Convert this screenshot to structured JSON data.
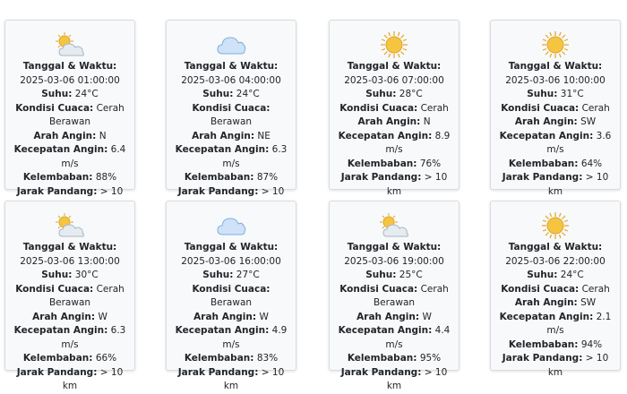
{
  "labels": {
    "datetime": "Tanggal & Waktu:",
    "temp": "Suhu:",
    "condition": "Kondisi Cuaca:",
    "wind_dir": "Arah Angin:",
    "wind_speed": "Kecepatan Angin:",
    "humidity": "Kelembaban:",
    "visibility": "Jarak Pandang:"
  },
  "cards": [
    {
      "icon": "partly-cloudy-icon",
      "datetime": "2025-03-06 01:00:00",
      "temp": "24°C",
      "condition": "Cerah Berawan",
      "wind_dir": "N",
      "wind_speed": "6.4 m/s",
      "humidity": "88%",
      "visibility": "> 10 km"
    },
    {
      "icon": "cloudy-icon",
      "datetime": "2025-03-06 04:00:00",
      "temp": "24°C",
      "condition": "Berawan",
      "wind_dir": "NE",
      "wind_speed": "6.3 m/s",
      "humidity": "87%",
      "visibility": "> 10 km"
    },
    {
      "icon": "sunny-icon",
      "datetime": "2025-03-06 07:00:00",
      "temp": "28°C",
      "condition": "Cerah",
      "wind_dir": "N",
      "wind_speed": "8.9 m/s",
      "humidity": "76%",
      "visibility": "> 10 km"
    },
    {
      "icon": "sunny-icon",
      "datetime": "2025-03-06 10:00:00",
      "temp": "31°C",
      "condition": "Cerah",
      "wind_dir": "SW",
      "wind_speed": "3.6 m/s",
      "humidity": "64%",
      "visibility": "> 10 km"
    },
    {
      "icon": "partly-cloudy-icon",
      "datetime": "2025-03-06 13:00:00",
      "temp": "30°C",
      "condition": "Cerah Berawan",
      "wind_dir": "W",
      "wind_speed": "6.3 m/s",
      "humidity": "66%",
      "visibility": "> 10 km"
    },
    {
      "icon": "cloudy-icon",
      "datetime": "2025-03-06 16:00:00",
      "temp": "27°C",
      "condition": "Berawan",
      "wind_dir": "W",
      "wind_speed": "4.9 m/s",
      "humidity": "83%",
      "visibility": "> 10 km"
    },
    {
      "icon": "partly-cloudy-icon",
      "datetime": "2025-03-06 19:00:00",
      "temp": "25°C",
      "condition": "Cerah Berawan",
      "wind_dir": "W",
      "wind_speed": "4.4 m/s",
      "humidity": "95%",
      "visibility": "> 10 km"
    },
    {
      "icon": "sunny-icon",
      "datetime": "2025-03-06 22:00:00",
      "temp": "24°C",
      "condition": "Cerah",
      "wind_dir": "SW",
      "wind_speed": "2.1 m/s",
      "humidity": "94%",
      "visibility": "> 10 km"
    }
  ],
  "colors": {
    "sun": "#f5c542",
    "sun_stroke": "#e0a526",
    "cloud_blue": "#cfe2f7",
    "cloud_blue_stroke": "#7fb0e0",
    "cloud_grey": "#e6ebf0",
    "cloud_grey_stroke": "#a9b7c6"
  }
}
